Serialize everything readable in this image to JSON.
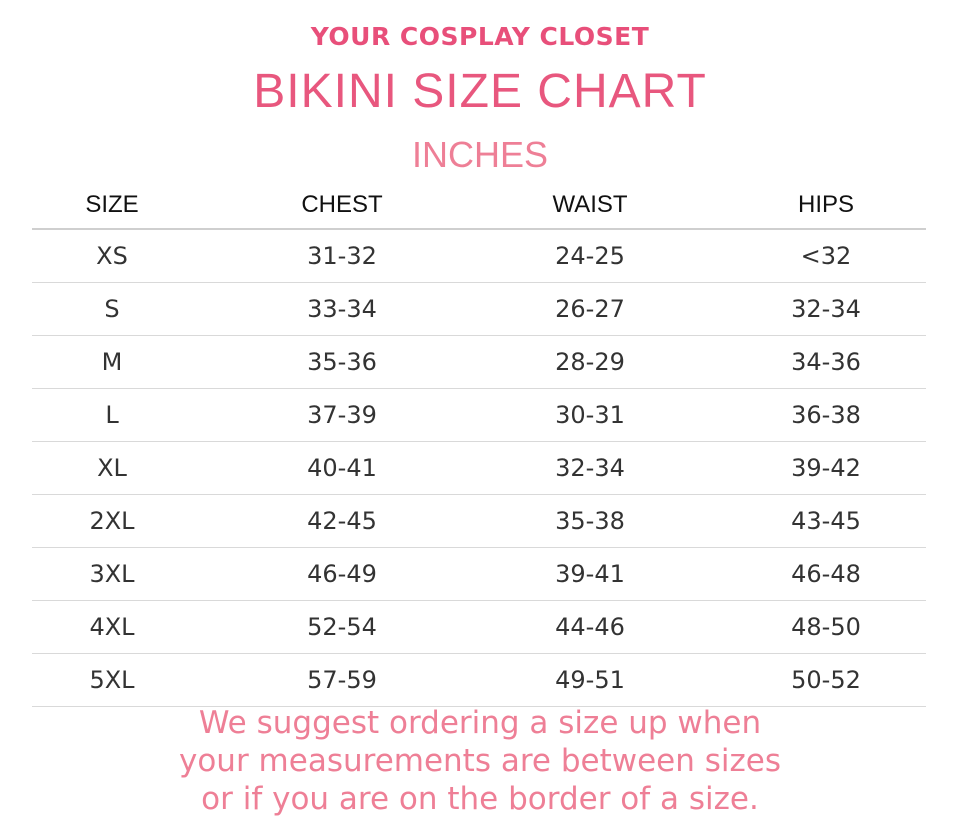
{
  "brand": "Your Cosplay Closet",
  "title": "BIKINI SIZE CHART",
  "unit": "INCHES",
  "columns": {
    "size": "SIZE",
    "chest": "CHEST",
    "waist": "WAIST",
    "hips": "HIPS"
  },
  "rows": [
    {
      "size": "XS",
      "chest": "31-32",
      "waist": "24-25",
      "hips": "<32"
    },
    {
      "size": "S",
      "chest": "33-34",
      "waist": "26-27",
      "hips": "32-34"
    },
    {
      "size": "M",
      "chest": "35-36",
      "waist": "28-29",
      "hips": "34-36"
    },
    {
      "size": "L",
      "chest": "37-39",
      "waist": "30-31",
      "hips": "36-38"
    },
    {
      "size": "XL",
      "chest": "40-41",
      "waist": "32-34",
      "hips": "39-42"
    },
    {
      "size": "2XL",
      "chest": "42-45",
      "waist": "35-38",
      "hips": "43-45"
    },
    {
      "size": "3XL",
      "chest": "46-49",
      "waist": "39-41",
      "hips": "46-48"
    },
    {
      "size": "4XL",
      "chest": "52-54",
      "waist": "44-46",
      "hips": "48-50"
    },
    {
      "size": "5XL",
      "chest": "57-59",
      "waist": "49-51",
      "hips": "50-52"
    }
  ],
  "note": {
    "line1": "We suggest ordering a size up when",
    "line2": "your measurements are between sizes",
    "line3": "or if you are on the border of a size."
  },
  "colors": {
    "brand": "#e84f7a",
    "title": "#e8577e",
    "note": "#ee7f96"
  }
}
